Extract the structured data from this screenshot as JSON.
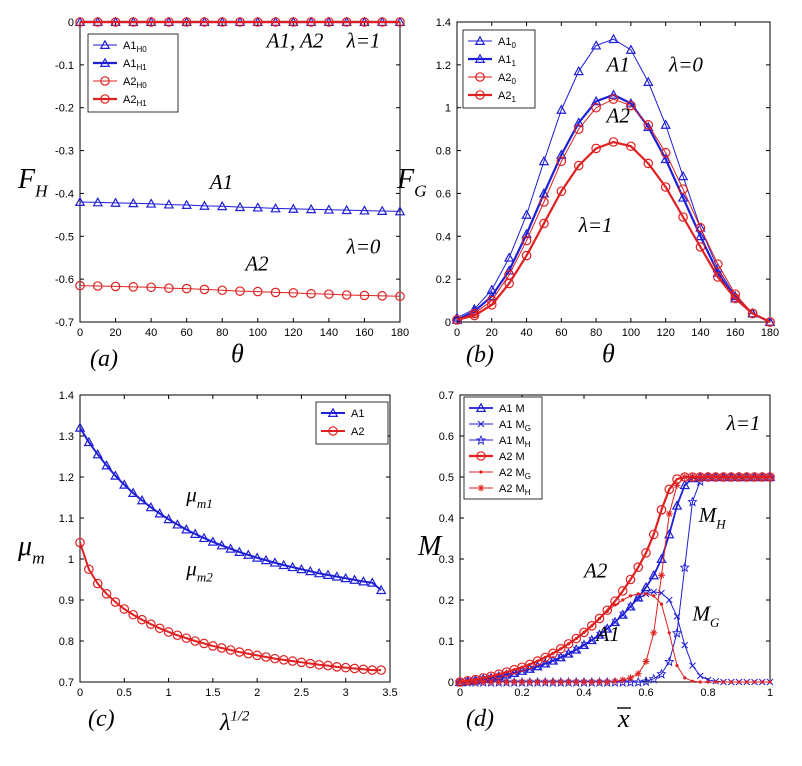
{
  "colors": {
    "blue": "#1f1fd6",
    "red": "#e02020"
  },
  "chart_data": [
    {
      "panel": "a",
      "type": "line",
      "panel_label": "(a)",
      "xlabel": "θ",
      "ylabel": "F",
      "ylabel_sub": "H",
      "xlim": [
        0,
        180
      ],
      "ylim": [
        -0.7,
        0
      ],
      "xticks": [
        "0",
        "20",
        "40",
        "60",
        "80",
        "100",
        "120",
        "140",
        "160",
        "180"
      ],
      "yticks": [
        "0",
        "-0.1",
        "-0.2",
        "-0.3",
        "-0.4",
        "-0.5",
        "-0.6",
        "-0.7"
      ],
      "x": [
        0,
        10,
        20,
        30,
        40,
        50,
        60,
        70,
        80,
        90,
        100,
        110,
        120,
        130,
        140,
        150,
        160,
        170,
        180
      ],
      "series": [
        {
          "name": "A1",
          "sub": "H0",
          "color": "blue",
          "marker": "triangle",
          "width": 1,
          "values": [
            -0.42,
            -0.421,
            -0.422,
            -0.423,
            -0.424,
            -0.426,
            -0.427,
            -0.429,
            -0.43,
            -0.432,
            -0.433,
            -0.435,
            -0.436,
            -0.437,
            -0.438,
            -0.439,
            -0.44,
            -0.441,
            -0.442
          ]
        },
        {
          "name": "A1",
          "sub": "H1",
          "color": "blue",
          "marker": "triangle",
          "width": 2.2,
          "values": [
            0,
            0,
            0,
            0,
            0,
            0,
            0,
            0,
            0,
            0,
            0,
            0,
            0,
            0,
            0,
            0,
            0,
            0,
            0
          ]
        },
        {
          "name": "A2",
          "sub": "H0",
          "color": "red",
          "marker": "circle",
          "width": 1,
          "values": [
            -0.615,
            -0.616,
            -0.617,
            -0.618,
            -0.619,
            -0.621,
            -0.622,
            -0.624,
            -0.626,
            -0.628,
            -0.629,
            -0.631,
            -0.632,
            -0.634,
            -0.635,
            -0.637,
            -0.638,
            -0.639,
            -0.64
          ]
        },
        {
          "name": "A2",
          "sub": "H1",
          "color": "red",
          "marker": "circle",
          "width": 2.2,
          "values": [
            0,
            0,
            0,
            0,
            0,
            0,
            0,
            0,
            0,
            0,
            0,
            0,
            0,
            0,
            0,
            0,
            0,
            0,
            0
          ]
        }
      ],
      "annotations": [
        {
          "text": "A1, A2",
          "x": 105,
          "y": -0.06
        },
        {
          "text": "λ=1",
          "x": 150,
          "y": -0.06
        },
        {
          "text": "A1",
          "x": 73,
          "y": -0.39
        },
        {
          "text": "A2",
          "x": 93,
          "y": -0.58
        },
        {
          "text": "λ=0",
          "x": 150,
          "y": -0.54
        }
      ]
    },
    {
      "panel": "b",
      "type": "line",
      "panel_label": "(b)",
      "xlabel": "θ",
      "ylabel": "F",
      "ylabel_sub": "G",
      "xlim": [
        0,
        180
      ],
      "ylim": [
        0,
        1.4
      ],
      "xticks": [
        "0",
        "20",
        "40",
        "60",
        "80",
        "100",
        "120",
        "140",
        "160",
        "180"
      ],
      "yticks": [
        "0",
        "0.2",
        "0.4",
        "0.6",
        "0.8",
        "1",
        "1.2",
        "1.4"
      ],
      "x": [
        0,
        10,
        20,
        30,
        40,
        50,
        60,
        70,
        80,
        90,
        100,
        110,
        120,
        130,
        140,
        150,
        160,
        170,
        180
      ],
      "series": [
        {
          "name": "A1",
          "sub": "0",
          "color": "blue",
          "marker": "triangle",
          "width": 1,
          "values": [
            0.02,
            0.06,
            0.15,
            0.3,
            0.5,
            0.75,
            0.99,
            1.17,
            1.29,
            1.32,
            1.27,
            1.12,
            0.92,
            0.68,
            0.44,
            0.25,
            0.12,
            0.04,
            0
          ]
        },
        {
          "name": "A1",
          "sub": "1",
          "color": "blue",
          "marker": "triangle",
          "width": 2.2,
          "values": [
            0.01,
            0.05,
            0.12,
            0.24,
            0.41,
            0.6,
            0.78,
            0.93,
            1.03,
            1.06,
            1.02,
            0.91,
            0.76,
            0.58,
            0.4,
            0.23,
            0.11,
            0.04,
            0
          ]
        },
        {
          "name": "A2",
          "sub": "0",
          "color": "red",
          "marker": "circle",
          "width": 1,
          "values": [
            0.01,
            0.04,
            0.1,
            0.22,
            0.38,
            0.56,
            0.75,
            0.9,
            1.0,
            1.04,
            1.01,
            0.92,
            0.79,
            0.62,
            0.44,
            0.27,
            0.13,
            0.04,
            0
          ]
        },
        {
          "name": "A2",
          "sub": "1",
          "color": "red",
          "marker": "circle",
          "width": 2.2,
          "values": [
            0.01,
            0.03,
            0.08,
            0.18,
            0.31,
            0.46,
            0.61,
            0.73,
            0.81,
            0.84,
            0.82,
            0.74,
            0.63,
            0.49,
            0.35,
            0.21,
            0.11,
            0.04,
            0
          ]
        }
      ],
      "annotations": [
        {
          "text": "A1",
          "x": 86,
          "y": 1.17
        },
        {
          "text": "λ=0",
          "x": 122,
          "y": 1.17
        },
        {
          "text": "A2",
          "x": 86,
          "y": 0.93
        },
        {
          "text": "λ=1",
          "x": 70,
          "y": 0.42
        }
      ]
    },
    {
      "panel": "c",
      "type": "line",
      "panel_label": "(c)",
      "xlabel": "λ",
      "xlabel_sup": "1/2",
      "ylabel": "μ",
      "ylabel_sub": "m",
      "xlim": [
        0,
        3.5
      ],
      "ylim": [
        0.7,
        1.4
      ],
      "xticks": [
        "0",
        "0.5",
        "1",
        "1.5",
        "2",
        "2.5",
        "3",
        "3.5"
      ],
      "yticks": [
        "0.7",
        "0.8",
        "0.9",
        "1",
        "1.1",
        "1.2",
        "1.3",
        "1.4"
      ],
      "x": [
        0,
        0.1,
        0.2,
        0.3,
        0.4,
        0.5,
        0.6,
        0.7,
        0.8,
        0.9,
        1,
        1.1,
        1.2,
        1.3,
        1.4,
        1.5,
        1.6,
        1.7,
        1.8,
        1.9,
        2,
        2.1,
        2.2,
        2.3,
        2.4,
        2.5,
        2.6,
        2.7,
        2.8,
        2.9,
        3,
        3.1,
        3.2,
        3.3,
        3.4
      ],
      "series": [
        {
          "name": "A1",
          "color": "blue",
          "marker": "triangle",
          "width": 2,
          "values": [
            1.32,
            1.285,
            1.255,
            1.228,
            1.203,
            1.181,
            1.161,
            1.143,
            1.126,
            1.111,
            1.097,
            1.084,
            1.072,
            1.061,
            1.051,
            1.042,
            1.033,
            1.025,
            1.017,
            1.01,
            1.003,
            0.997,
            0.991,
            0.985,
            0.98,
            0.975,
            0.97,
            0.965,
            0.961,
            0.957,
            0.953,
            0.949,
            0.945,
            0.942,
            0.924
          ]
        },
        {
          "name": "A2",
          "color": "red",
          "marker": "circle",
          "width": 2,
          "values": [
            1.04,
            0.975,
            0.94,
            0.915,
            0.895,
            0.878,
            0.864,
            0.852,
            0.841,
            0.831,
            0.822,
            0.814,
            0.807,
            0.8,
            0.794,
            0.788,
            0.783,
            0.778,
            0.773,
            0.769,
            0.765,
            0.761,
            0.757,
            0.754,
            0.751,
            0.748,
            0.745,
            0.742,
            0.74,
            0.737,
            0.735,
            0.733,
            0.731,
            0.729,
            0.729
          ]
        }
      ],
      "annotations": [
        {
          "text": "μ",
          "sub": "m1",
          "x": 1.2,
          "y": 1.14
        },
        {
          "text": "μ",
          "sub": "m2",
          "x": 1.2,
          "y": 0.96
        }
      ]
    },
    {
      "panel": "d",
      "type": "line",
      "panel_label": "(d)",
      "xlabel": "x",
      "ylabel": "M",
      "xlim": [
        0,
        1
      ],
      "ylim": [
        0,
        0.7
      ],
      "xticks": [
        "0",
        "0.2",
        "0.4",
        "0.6",
        "0.8",
        "1"
      ],
      "yticks": [
        "0",
        "0.1",
        "0.2",
        "0.3",
        "0.4",
        "0.5",
        "0.6",
        "0.7"
      ],
      "x": [
        0,
        0.025,
        0.05,
        0.075,
        0.1,
        0.125,
        0.15,
        0.175,
        0.2,
        0.225,
        0.25,
        0.275,
        0.3,
        0.325,
        0.35,
        0.375,
        0.4,
        0.425,
        0.45,
        0.475,
        0.5,
        0.525,
        0.55,
        0.575,
        0.6,
        0.625,
        0.65,
        0.675,
        0.7,
        0.725,
        0.75,
        0.775,
        0.8,
        0.825,
        0.85,
        0.875,
        0.9,
        0.925,
        0.95,
        0.975,
        1
      ],
      "series": [
        {
          "name": "A1 M",
          "color": "blue",
          "marker": "triangle",
          "width": 1.8,
          "values": [
            0,
            0.002,
            0.004,
            0.007,
            0.01,
            0.014,
            0.018,
            0.022,
            0.027,
            0.032,
            0.038,
            0.045,
            0.052,
            0.06,
            0.069,
            0.079,
            0.09,
            0.102,
            0.115,
            0.13,
            0.146,
            0.164,
            0.184,
            0.206,
            0.231,
            0.26,
            0.3,
            0.36,
            0.43,
            0.48,
            0.497,
            0.5,
            0.5,
            0.5,
            0.5,
            0.5,
            0.5,
            0.5,
            0.5,
            0.5,
            0.5
          ]
        },
        {
          "name": "A1 M",
          "sub": "G",
          "color": "blue",
          "marker": "x",
          "width": 1,
          "values": [
            0,
            0.002,
            0.004,
            0.007,
            0.01,
            0.014,
            0.018,
            0.022,
            0.027,
            0.032,
            0.038,
            0.045,
            0.052,
            0.06,
            0.069,
            0.079,
            0.09,
            0.102,
            0.115,
            0.13,
            0.146,
            0.164,
            0.184,
            0.203,
            0.215,
            0.22,
            0.217,
            0.2,
            0.16,
            0.09,
            0.04,
            0.015,
            0.005,
            0.002,
            0,
            0,
            0,
            0,
            0,
            0,
            0
          ]
        },
        {
          "name": "A1 M",
          "sub": "H",
          "color": "blue",
          "marker": "star",
          "width": 1,
          "values": [
            0,
            0,
            0,
            0,
            0,
            0,
            0,
            0,
            0,
            0,
            0,
            0,
            0,
            0,
            0,
            0,
            0,
            0,
            0,
            0,
            0,
            0,
            0,
            0,
            0.002,
            0.008,
            0.02,
            0.05,
            0.12,
            0.28,
            0.44,
            0.49,
            0.5,
            0.5,
            0.5,
            0.5,
            0.5,
            0.5,
            0.5,
            0.5,
            0.5
          ]
        },
        {
          "name": "A2 M",
          "color": "red",
          "marker": "circle",
          "width": 2.2,
          "values": [
            0,
            0.003,
            0.006,
            0.01,
            0.014,
            0.019,
            0.024,
            0.03,
            0.036,
            0.043,
            0.051,
            0.06,
            0.07,
            0.081,
            0.093,
            0.106,
            0.121,
            0.137,
            0.155,
            0.175,
            0.197,
            0.222,
            0.25,
            0.28,
            0.315,
            0.36,
            0.42,
            0.47,
            0.495,
            0.5,
            0.5,
            0.5,
            0.5,
            0.5,
            0.5,
            0.5,
            0.5,
            0.5,
            0.5,
            0.5,
            0.5
          ]
        },
        {
          "name": "A2 M",
          "sub": "G",
          "color": "red",
          "marker": "dot",
          "width": 1,
          "values": [
            0,
            0.003,
            0.006,
            0.01,
            0.014,
            0.019,
            0.024,
            0.03,
            0.036,
            0.043,
            0.051,
            0.06,
            0.07,
            0.081,
            0.093,
            0.106,
            0.121,
            0.137,
            0.155,
            0.172,
            0.188,
            0.2,
            0.21,
            0.215,
            0.215,
            0.21,
            0.19,
            0.12,
            0.04,
            0.01,
            0.002,
            0,
            0,
            0,
            0,
            0,
            0,
            0,
            0,
            0,
            0
          ]
        },
        {
          "name": "A2 M",
          "sub": "H",
          "color": "red",
          "marker": "asterisk",
          "width": 1,
          "values": [
            0,
            0,
            0,
            0,
            0,
            0,
            0,
            0,
            0,
            0,
            0,
            0,
            0,
            0,
            0,
            0,
            0,
            0,
            0,
            0,
            0.002,
            0.005,
            0.01,
            0.02,
            0.05,
            0.12,
            0.26,
            0.41,
            0.48,
            0.5,
            0.5,
            0.5,
            0.5,
            0.5,
            0.5,
            0.5,
            0.5,
            0.5,
            0.5,
            0.5,
            0.5
          ]
        }
      ],
      "annotations": [
        {
          "text": "λ=1",
          "x": 0.86,
          "y": 0.615
        },
        {
          "text": "A2",
          "x": 0.4,
          "y": 0.255
        },
        {
          "text": "A1",
          "x": 0.44,
          "y": 0.1
        },
        {
          "text": "M",
          "sub": "H",
          "x": 0.77,
          "y": 0.39
        },
        {
          "text": "M",
          "sub": "G",
          "x": 0.75,
          "y": 0.15
        }
      ]
    }
  ]
}
